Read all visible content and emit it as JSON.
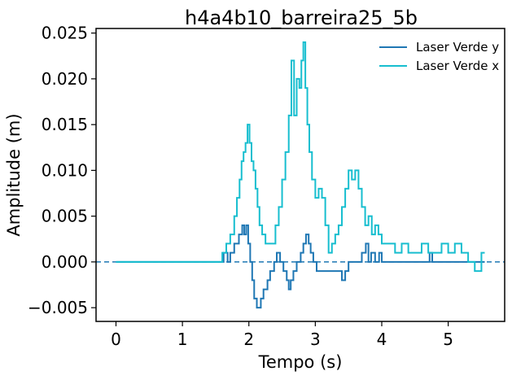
{
  "chart_data": {
    "type": "line",
    "title": "h4a4b10_barreira25_5b",
    "xlabel": "Tempo (s)",
    "ylabel": "Amplitude (m)",
    "xlim": [
      -0.3,
      5.85
    ],
    "ylim": [
      -0.0065,
      0.0255
    ],
    "xticks": [
      0,
      1,
      2,
      3,
      4,
      5
    ],
    "xtick_labels": [
      "0",
      "1",
      "2",
      "3",
      "4",
      "5"
    ],
    "yticks": [
      -0.005,
      0.0,
      0.005,
      0.01,
      0.015,
      0.02,
      0.025
    ],
    "ytick_labels": [
      "−0.005",
      "0.000",
      "0.005",
      "0.010",
      "0.015",
      "0.020",
      "0.025"
    ],
    "grid": false,
    "legend_position": "top-right",
    "reference_line": {
      "y": 0.0,
      "style": "dashed",
      "color": "#1f77b4"
    },
    "series": [
      {
        "name": "Laser Verde y",
        "color": "#1f77b4",
        "x": [
          0.0,
          1.6,
          1.62,
          1.68,
          1.72,
          1.78,
          1.85,
          1.9,
          1.93,
          1.96,
          1.99,
          2.02,
          2.05,
          2.08,
          2.12,
          2.18,
          2.22,
          2.28,
          2.32,
          2.38,
          2.42,
          2.47,
          2.52,
          2.57,
          2.6,
          2.63,
          2.67,
          2.72,
          2.78,
          2.82,
          2.86,
          2.9,
          2.93,
          2.97,
          3.02,
          3.1,
          3.2,
          3.3,
          3.4,
          3.45,
          3.5,
          3.55,
          3.62,
          3.7,
          3.76,
          3.8,
          3.84,
          3.9,
          3.96,
          4.0,
          4.1,
          4.2,
          4.3,
          4.4,
          4.5,
          4.6,
          4.68,
          4.72,
          4.76,
          4.8,
          4.9,
          5.0,
          5.1,
          5.2,
          5.3,
          5.4,
          5.5,
          5.55
        ],
        "values": [
          0.0,
          0.0,
          0.001,
          0.0,
          0.001,
          0.002,
          0.003,
          0.004,
          0.003,
          0.004,
          0.002,
          0.0,
          -0.002,
          -0.004,
          -0.005,
          -0.004,
          -0.003,
          -0.002,
          -0.001,
          0.0,
          0.001,
          0.0,
          -0.001,
          -0.002,
          -0.003,
          -0.002,
          -0.001,
          0.0,
          0.001,
          0.002,
          0.003,
          0.002,
          0.001,
          0.0,
          -0.001,
          -0.001,
          -0.001,
          -0.001,
          -0.002,
          -0.001,
          0.0,
          0.0,
          0.0,
          0.001,
          0.002,
          0.0,
          0.001,
          0.0,
          0.001,
          0.0,
          0.0,
          0.0,
          0.0,
          0.0,
          0.0,
          0.0,
          0.0,
          0.001,
          0.0,
          0.0,
          0.0,
          0.0,
          0.0,
          0.0,
          0.0,
          0.0,
          0.0,
          0.0
        ]
      },
      {
        "name": "Laser Verde x",
        "color": "#17becf",
        "x": [
          0.0,
          1.55,
          1.6,
          1.66,
          1.72,
          1.78,
          1.82,
          1.86,
          1.89,
          1.92,
          1.95,
          1.98,
          2.01,
          2.04,
          2.07,
          2.1,
          2.13,
          2.16,
          2.2,
          2.25,
          2.3,
          2.35,
          2.4,
          2.45,
          2.5,
          2.55,
          2.6,
          2.64,
          2.68,
          2.72,
          2.76,
          2.79,
          2.82,
          2.85,
          2.88,
          2.91,
          2.95,
          3.0,
          3.05,
          3.1,
          3.15,
          3.2,
          3.25,
          3.3,
          3.35,
          3.4,
          3.45,
          3.5,
          3.55,
          3.6,
          3.65,
          3.7,
          3.75,
          3.8,
          3.85,
          3.9,
          3.95,
          4.0,
          4.1,
          4.2,
          4.3,
          4.4,
          4.5,
          4.6,
          4.7,
          4.8,
          4.9,
          5.0,
          5.1,
          5.2,
          5.3,
          5.4,
          5.5,
          5.55
        ],
        "values": [
          0.0,
          0.0,
          0.001,
          0.002,
          0.003,
          0.005,
          0.007,
          0.009,
          0.011,
          0.012,
          0.013,
          0.015,
          0.013,
          0.011,
          0.01,
          0.008,
          0.006,
          0.004,
          0.003,
          0.002,
          0.002,
          0.002,
          0.004,
          0.006,
          0.009,
          0.012,
          0.016,
          0.022,
          0.016,
          0.02,
          0.019,
          0.022,
          0.024,
          0.019,
          0.015,
          0.012,
          0.009,
          0.007,
          0.008,
          0.007,
          0.004,
          0.001,
          0.002,
          0.003,
          0.004,
          0.006,
          0.008,
          0.01,
          0.009,
          0.01,
          0.008,
          0.006,
          0.004,
          0.005,
          0.003,
          0.004,
          0.003,
          0.002,
          0.002,
          0.001,
          0.002,
          0.001,
          0.001,
          0.002,
          0.001,
          0.001,
          0.002,
          0.001,
          0.002,
          0.001,
          0.0,
          -0.001,
          0.001,
          0.001
        ]
      }
    ]
  }
}
